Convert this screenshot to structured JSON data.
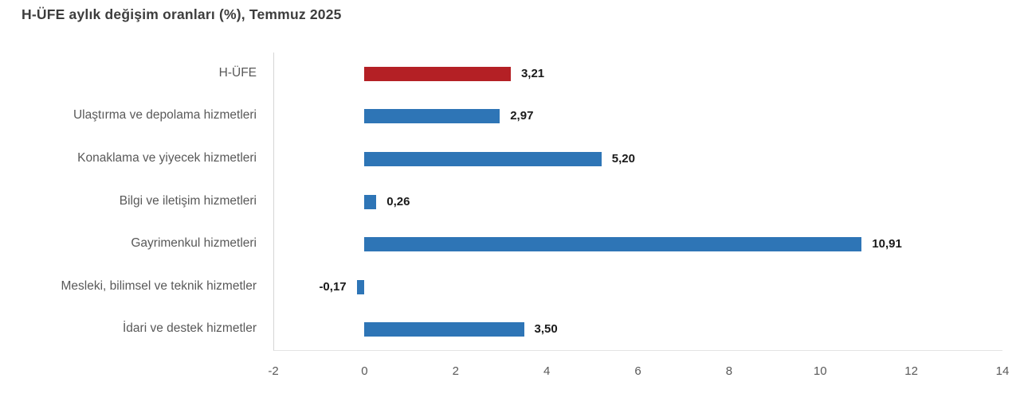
{
  "title": "H-ÜFE aylık değişim oranları (%), Temmuz 2025",
  "colors": {
    "highlight_bar": "#b42025",
    "default_bar": "#2e75b6",
    "title_text": "#3d3d3d",
    "category_text": "#595959",
    "value_text": "#1a1a1a",
    "axis_line": "#d6d6d6"
  },
  "chart_data": {
    "type": "bar",
    "orientation": "horizontal",
    "title": "H-ÜFE aylık değişim oranları (%), Temmuz 2025",
    "categories": [
      "H-ÜFE",
      "Ulaştırma ve depolama hizmetleri",
      "Konaklama ve yiyecek hizmetleri",
      "Bilgi ve iletişim hizmetleri",
      "Gayrimenkul hizmetleri",
      "Mesleki, bilimsel ve teknik hizmetler",
      "İdari ve destek hizmetler"
    ],
    "values": [
      3.21,
      2.97,
      5.2,
      0.26,
      10.91,
      -0.17,
      3.5
    ],
    "value_labels": [
      "3,21",
      "2,97",
      "5,20",
      "0,26",
      "10,91",
      "-0,17",
      "3,50"
    ],
    "bar_colors": [
      "#b42025",
      "#2e75b6",
      "#2e75b6",
      "#2e75b6",
      "#2e75b6",
      "#2e75b6",
      "#2e75b6"
    ],
    "xlabel": "",
    "ylabel": "",
    "xlim": [
      -2,
      14
    ],
    "x_ticks": [
      -2,
      0,
      2,
      4,
      6,
      8,
      10,
      12,
      14
    ],
    "grid": false,
    "legend_position": "none"
  }
}
